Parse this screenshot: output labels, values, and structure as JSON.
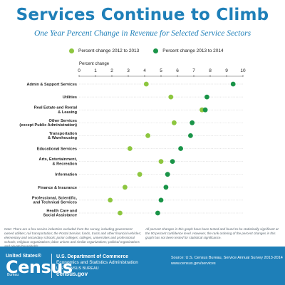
{
  "header": {
    "title": "Services Continue to Climb",
    "subtitle": "One Year Percent Change in Revenue for Selected Service Sectors"
  },
  "colors": {
    "light_green": "#8dc63f",
    "dark_green": "#1a9448",
    "title_blue": "#1e7fb8"
  },
  "chart_data": {
    "type": "scatter",
    "orientation": "horizontal",
    "axis_title": "Percent change",
    "xlim": [
      0,
      10
    ],
    "x_ticks": [
      "0",
      "1",
      "2",
      "3",
      "4",
      "5",
      "6",
      "7",
      "8",
      "9",
      "10"
    ],
    "legend_position": "top",
    "categories": [
      [
        "Admin & Support Services"
      ],
      [
        "Utilities"
      ],
      [
        "Real Estate and Rental",
        "& Leasing"
      ],
      [
        "Other Services",
        "(except Public Administration)"
      ],
      [
        "Transportation",
        "& Warehousing"
      ],
      [
        "Educational Services"
      ],
      [
        "Arts, Entertainment,",
        "& Recreation"
      ],
      [
        "Information"
      ],
      [
        "Finance & Insurance"
      ],
      [
        "Professional, Scientific,",
        "and Technical Services"
      ],
      [
        "Health Care and",
        "Social Assistance"
      ]
    ],
    "series": [
      {
        "name": "Percent change 2012 to 2013",
        "color": "#8dc63f",
        "values": [
          4.1,
          5.6,
          7.5,
          5.8,
          4.2,
          3.1,
          5.0,
          3.7,
          2.8,
          1.9,
          2.5
        ]
      },
      {
        "name": "Percent change 2013 to 2014",
        "color": "#1a9448",
        "values": [
          9.4,
          7.8,
          7.7,
          6.9,
          6.8,
          6.2,
          5.7,
          5.4,
          5.3,
          5.0,
          4.8
        ]
      }
    ]
  },
  "notes": {
    "left": "Note: There are a few service industries excluded from the survey, including government owned utilities; rail transportation; the Postal Service; funds, trusts and other financial vehicles; elementary and secondary schools; junior colleges; colleges, universities and professional schools; religious organizations; labor unions and similar organizations; political organizations and private households.",
    "right": "All percent changes in this graph have been tested and found to be statistically significant at the 90 percent confidence level. However, the rank ordering of the percent changes in this graph has not been tested for statistical significance."
  },
  "footer": {
    "logo_top": "United States®",
    "logo_main": "Census",
    "logo_bureau": "Bureau",
    "dept_line1": "U.S. Department of Commerce",
    "dept_line2": "Economics and Statistics Administration",
    "dept_line3": "U.S. CENSUS BUREAU",
    "dept_line4": "census.gov",
    "source_line1": "Source: U.S. Census Bureau, Service Annual Survey 2013-2014",
    "source_line2": "www.census.gov/services"
  }
}
